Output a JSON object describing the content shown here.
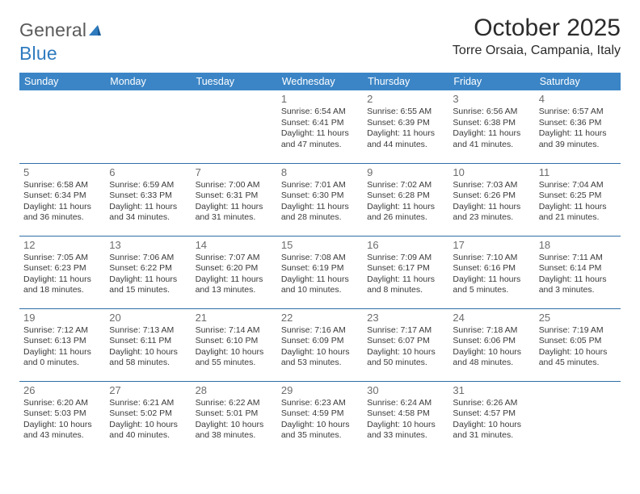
{
  "brand": {
    "name_part1": "General",
    "name_part2": "Blue",
    "accent_color": "#2f7bbf"
  },
  "header": {
    "title": "October 2025",
    "location": "Torre Orsaia, Campania, Italy"
  },
  "styling": {
    "header_bg": "#3b85c6",
    "header_text": "#ffffff",
    "row_border": "#2f6ea8",
    "daynum_color": "#6d6d6d",
    "body_text": "#3a3a3a",
    "page_bg": "#ffffff",
    "title_fontsize": 30,
    "location_fontsize": 16,
    "header_cell_fontsize": 12.5,
    "daynum_fontsize": 13,
    "event_fontsize": 10.5
  },
  "weekdays": [
    "Sunday",
    "Monday",
    "Tuesday",
    "Wednesday",
    "Thursday",
    "Friday",
    "Saturday"
  ],
  "weeks": [
    [
      null,
      null,
      null,
      {
        "n": "1",
        "sunrise": "Sunrise: 6:54 AM",
        "sunset": "Sunset: 6:41 PM",
        "daylight": "Daylight: 11 hours and 47 minutes."
      },
      {
        "n": "2",
        "sunrise": "Sunrise: 6:55 AM",
        "sunset": "Sunset: 6:39 PM",
        "daylight": "Daylight: 11 hours and 44 minutes."
      },
      {
        "n": "3",
        "sunrise": "Sunrise: 6:56 AM",
        "sunset": "Sunset: 6:38 PM",
        "daylight": "Daylight: 11 hours and 41 minutes."
      },
      {
        "n": "4",
        "sunrise": "Sunrise: 6:57 AM",
        "sunset": "Sunset: 6:36 PM",
        "daylight": "Daylight: 11 hours and 39 minutes."
      }
    ],
    [
      {
        "n": "5",
        "sunrise": "Sunrise: 6:58 AM",
        "sunset": "Sunset: 6:34 PM",
        "daylight": "Daylight: 11 hours and 36 minutes."
      },
      {
        "n": "6",
        "sunrise": "Sunrise: 6:59 AM",
        "sunset": "Sunset: 6:33 PM",
        "daylight": "Daylight: 11 hours and 34 minutes."
      },
      {
        "n": "7",
        "sunrise": "Sunrise: 7:00 AM",
        "sunset": "Sunset: 6:31 PM",
        "daylight": "Daylight: 11 hours and 31 minutes."
      },
      {
        "n": "8",
        "sunrise": "Sunrise: 7:01 AM",
        "sunset": "Sunset: 6:30 PM",
        "daylight": "Daylight: 11 hours and 28 minutes."
      },
      {
        "n": "9",
        "sunrise": "Sunrise: 7:02 AM",
        "sunset": "Sunset: 6:28 PM",
        "daylight": "Daylight: 11 hours and 26 minutes."
      },
      {
        "n": "10",
        "sunrise": "Sunrise: 7:03 AM",
        "sunset": "Sunset: 6:26 PM",
        "daylight": "Daylight: 11 hours and 23 minutes."
      },
      {
        "n": "11",
        "sunrise": "Sunrise: 7:04 AM",
        "sunset": "Sunset: 6:25 PM",
        "daylight": "Daylight: 11 hours and 21 minutes."
      }
    ],
    [
      {
        "n": "12",
        "sunrise": "Sunrise: 7:05 AM",
        "sunset": "Sunset: 6:23 PM",
        "daylight": "Daylight: 11 hours and 18 minutes."
      },
      {
        "n": "13",
        "sunrise": "Sunrise: 7:06 AM",
        "sunset": "Sunset: 6:22 PM",
        "daylight": "Daylight: 11 hours and 15 minutes."
      },
      {
        "n": "14",
        "sunrise": "Sunrise: 7:07 AM",
        "sunset": "Sunset: 6:20 PM",
        "daylight": "Daylight: 11 hours and 13 minutes."
      },
      {
        "n": "15",
        "sunrise": "Sunrise: 7:08 AM",
        "sunset": "Sunset: 6:19 PM",
        "daylight": "Daylight: 11 hours and 10 minutes."
      },
      {
        "n": "16",
        "sunrise": "Sunrise: 7:09 AM",
        "sunset": "Sunset: 6:17 PM",
        "daylight": "Daylight: 11 hours and 8 minutes."
      },
      {
        "n": "17",
        "sunrise": "Sunrise: 7:10 AM",
        "sunset": "Sunset: 6:16 PM",
        "daylight": "Daylight: 11 hours and 5 minutes."
      },
      {
        "n": "18",
        "sunrise": "Sunrise: 7:11 AM",
        "sunset": "Sunset: 6:14 PM",
        "daylight": "Daylight: 11 hours and 3 minutes."
      }
    ],
    [
      {
        "n": "19",
        "sunrise": "Sunrise: 7:12 AM",
        "sunset": "Sunset: 6:13 PM",
        "daylight": "Daylight: 11 hours and 0 minutes."
      },
      {
        "n": "20",
        "sunrise": "Sunrise: 7:13 AM",
        "sunset": "Sunset: 6:11 PM",
        "daylight": "Daylight: 10 hours and 58 minutes."
      },
      {
        "n": "21",
        "sunrise": "Sunrise: 7:14 AM",
        "sunset": "Sunset: 6:10 PM",
        "daylight": "Daylight: 10 hours and 55 minutes."
      },
      {
        "n": "22",
        "sunrise": "Sunrise: 7:16 AM",
        "sunset": "Sunset: 6:09 PM",
        "daylight": "Daylight: 10 hours and 53 minutes."
      },
      {
        "n": "23",
        "sunrise": "Sunrise: 7:17 AM",
        "sunset": "Sunset: 6:07 PM",
        "daylight": "Daylight: 10 hours and 50 minutes."
      },
      {
        "n": "24",
        "sunrise": "Sunrise: 7:18 AM",
        "sunset": "Sunset: 6:06 PM",
        "daylight": "Daylight: 10 hours and 48 minutes."
      },
      {
        "n": "25",
        "sunrise": "Sunrise: 7:19 AM",
        "sunset": "Sunset: 6:05 PM",
        "daylight": "Daylight: 10 hours and 45 minutes."
      }
    ],
    [
      {
        "n": "26",
        "sunrise": "Sunrise: 6:20 AM",
        "sunset": "Sunset: 5:03 PM",
        "daylight": "Daylight: 10 hours and 43 minutes."
      },
      {
        "n": "27",
        "sunrise": "Sunrise: 6:21 AM",
        "sunset": "Sunset: 5:02 PM",
        "daylight": "Daylight: 10 hours and 40 minutes."
      },
      {
        "n": "28",
        "sunrise": "Sunrise: 6:22 AM",
        "sunset": "Sunset: 5:01 PM",
        "daylight": "Daylight: 10 hours and 38 minutes."
      },
      {
        "n": "29",
        "sunrise": "Sunrise: 6:23 AM",
        "sunset": "Sunset: 4:59 PM",
        "daylight": "Daylight: 10 hours and 35 minutes."
      },
      {
        "n": "30",
        "sunrise": "Sunrise: 6:24 AM",
        "sunset": "Sunset: 4:58 PM",
        "daylight": "Daylight: 10 hours and 33 minutes."
      },
      {
        "n": "31",
        "sunrise": "Sunrise: 6:26 AM",
        "sunset": "Sunset: 4:57 PM",
        "daylight": "Daylight: 10 hours and 31 minutes."
      },
      null
    ]
  ]
}
